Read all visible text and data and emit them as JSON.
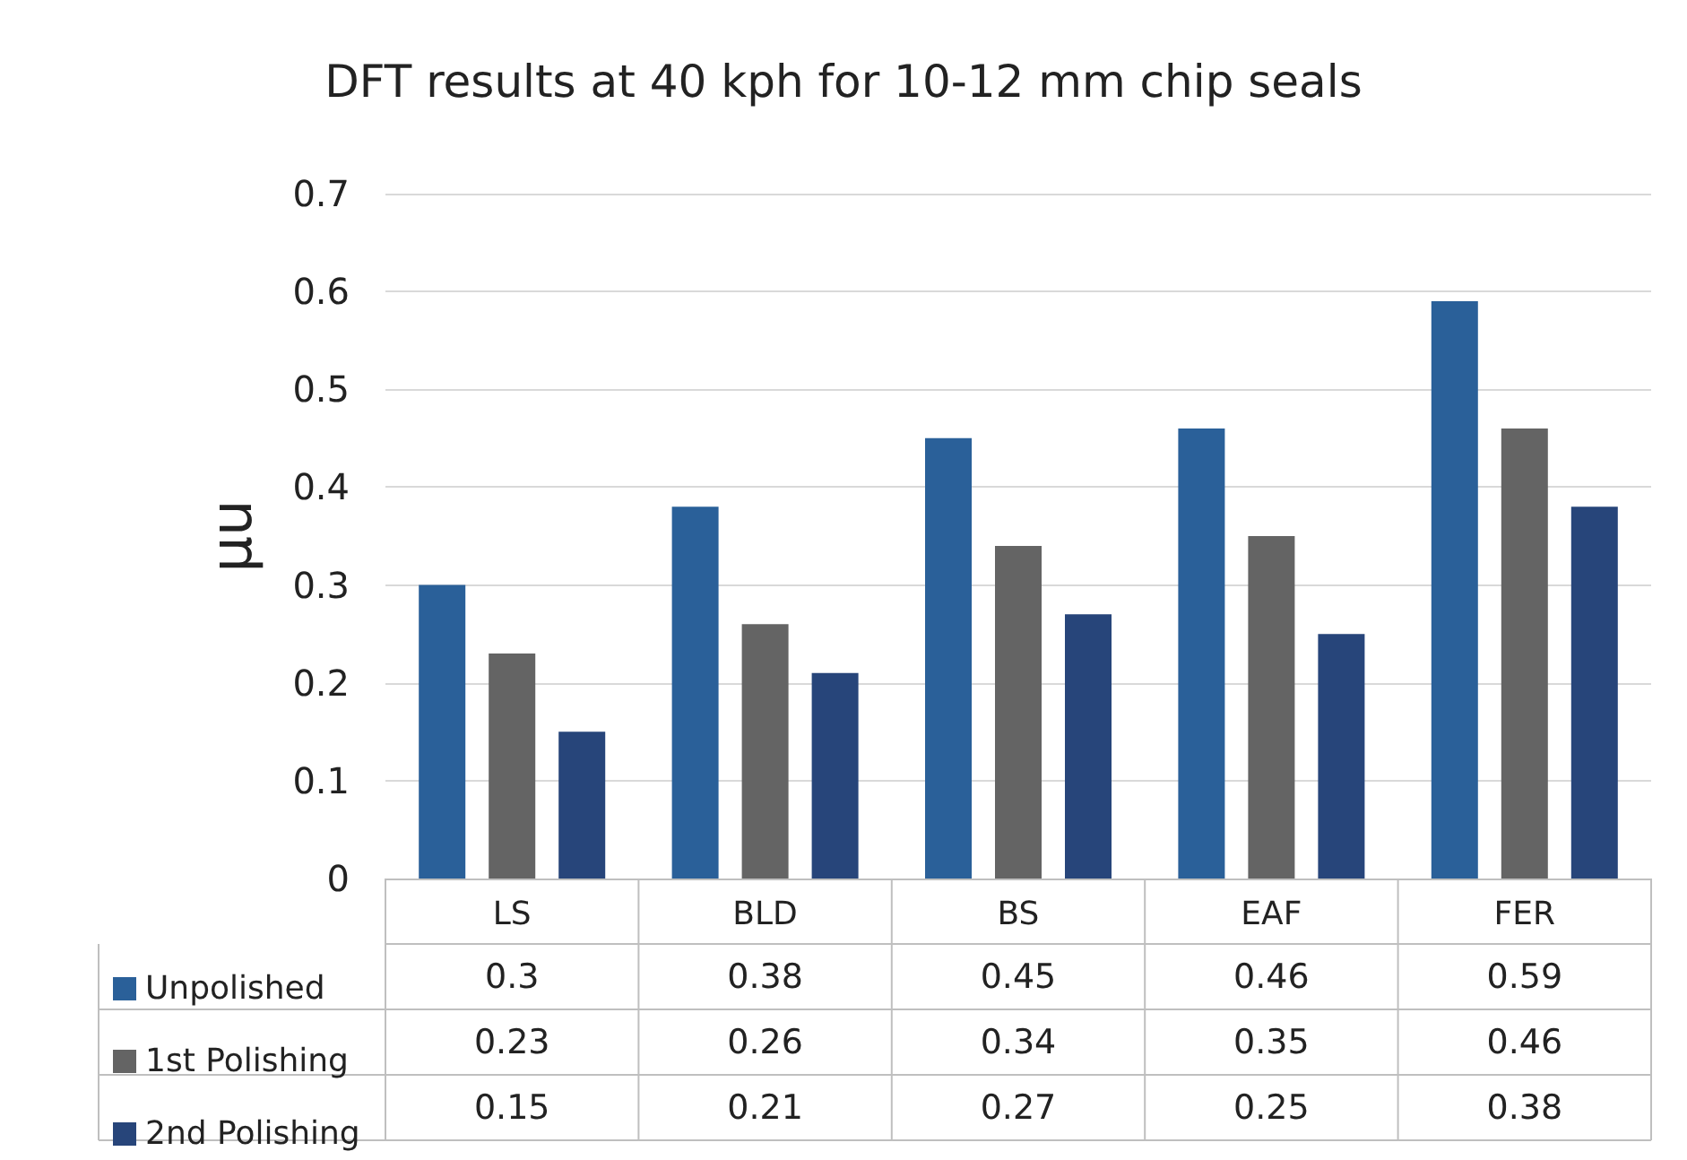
{
  "chart_data": {
    "type": "bar",
    "title": "DFT results at 40 kph for 10-12 mm chip seals",
    "ylabel": "μu",
    "categories": [
      "LS",
      "BLD",
      "BS",
      "EAF",
      "FER"
    ],
    "series": [
      {
        "name": "Unpolished",
        "color": "#2a6099",
        "values": [
          0.3,
          0.38,
          0.45,
          0.46,
          0.59
        ]
      },
      {
        "name": "1st Polishing",
        "color": "#646464",
        "values": [
          0.23,
          0.26,
          0.34,
          0.35,
          0.46
        ]
      },
      {
        "name": "2nd Polishing",
        "color": "#27457a",
        "values": [
          0.15,
          0.21,
          0.27,
          0.25,
          0.38
        ]
      }
    ],
    "ylim": [
      0,
      0.7
    ],
    "yticks": [
      0,
      0.1,
      0.2,
      0.3,
      0.4,
      0.5,
      0.6,
      0.7
    ],
    "grid": "y",
    "legend": "bottom left",
    "data_labels": true
  }
}
